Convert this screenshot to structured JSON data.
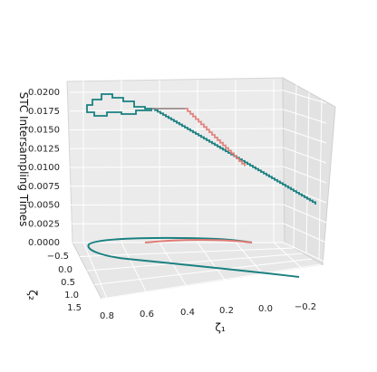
{
  "chart_data": {
    "type": "line3d",
    "title": "",
    "axes": {
      "x": {
        "label": "ζ₁",
        "ticks": [
          "0.8",
          "0.6",
          "0.4",
          "0.2",
          "0.0",
          "−0.2"
        ]
      },
      "y": {
        "label": "ζ₂",
        "ticks": [
          "−0.5",
          "0.0",
          "0.5",
          "1.0",
          "1.5"
        ]
      },
      "z": {
        "label": "STC Intersampling Times",
        "ticks": [
          "0.0000",
          "0.0025",
          "0.0050",
          "0.0075",
          "0.0100",
          "0.0125",
          "0.0150",
          "0.0175",
          "0.0200"
        ],
        "ylim": [
          0,
          0.02
        ]
      }
    },
    "series": [
      {
        "color": "#1b8080",
        "description": "teal trajectory: projection on floor and staircase of intersampling times"
      },
      {
        "color": "#e07a74",
        "description": "salmon trajectory segment"
      }
    ],
    "colors": {
      "teal": "#1b8080",
      "salmon": "#e07a74",
      "pane": "#ebebeb"
    }
  }
}
